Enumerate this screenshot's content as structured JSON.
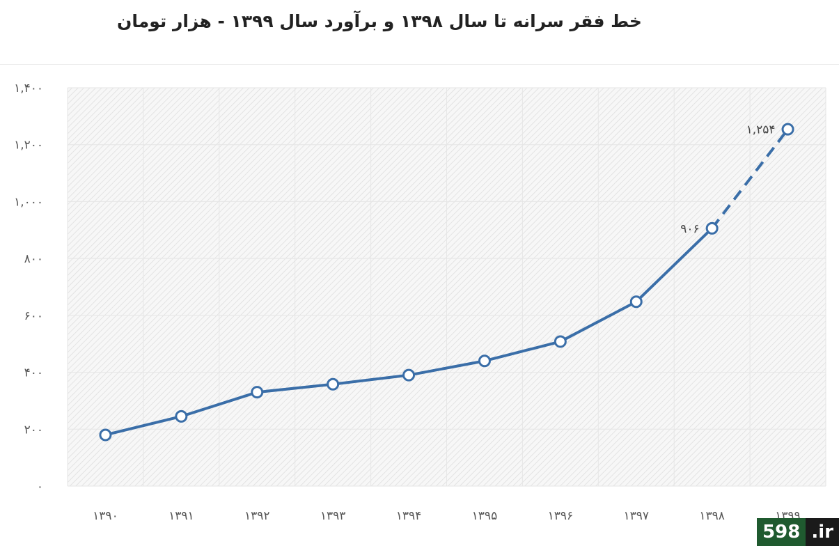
{
  "title": "خط فقر سرانه تا سال ۱۳۹۸ و برآورد سال ۱۳۹۹ - هزار تومان",
  "chart_data": {
    "type": "line",
    "title": "خط فقر سرانه تا سال ۱۳۹۸ و برآورد سال ۱۳۹۹ - هزار تومان",
    "xlabel": "",
    "ylabel": "",
    "categories": [
      "۱۳۹۰",
      "۱۳۹۱",
      "۱۳۹۲",
      "۱۳۹۳",
      "۱۳۹۴",
      "۱۳۹۵",
      "۱۳۹۶",
      "۱۳۹۷",
      "۱۳۹۸",
      "۱۳۹۹"
    ],
    "series": [
      {
        "values": [
          180,
          245,
          330,
          358,
          390,
          440,
          508,
          648,
          906,
          1254
        ],
        "color": "#3a6ea8",
        "estimated_from_index": 8,
        "style_estimated": "dashed"
      }
    ],
    "ylim": [
      0,
      1400
    ],
    "yticks": [
      0,
      200,
      400,
      600,
      800,
      1000,
      1200,
      1400
    ],
    "ytick_labels": [
      "۰",
      "۲۰۰",
      "۴۰۰",
      "۶۰۰",
      "۸۰۰",
      "۱,۰۰۰",
      "۱,۲۰۰",
      "۱,۴۰۰"
    ],
    "data_labels": [
      {
        "index": 8,
        "text": "۹۰۶"
      },
      {
        "index": 9,
        "text": "۱,۲۵۴"
      }
    ],
    "grid": true,
    "plot_background": "hatched-gray",
    "legend": "none"
  },
  "watermark": {
    "number": "598",
    "tld": ".ir"
  }
}
